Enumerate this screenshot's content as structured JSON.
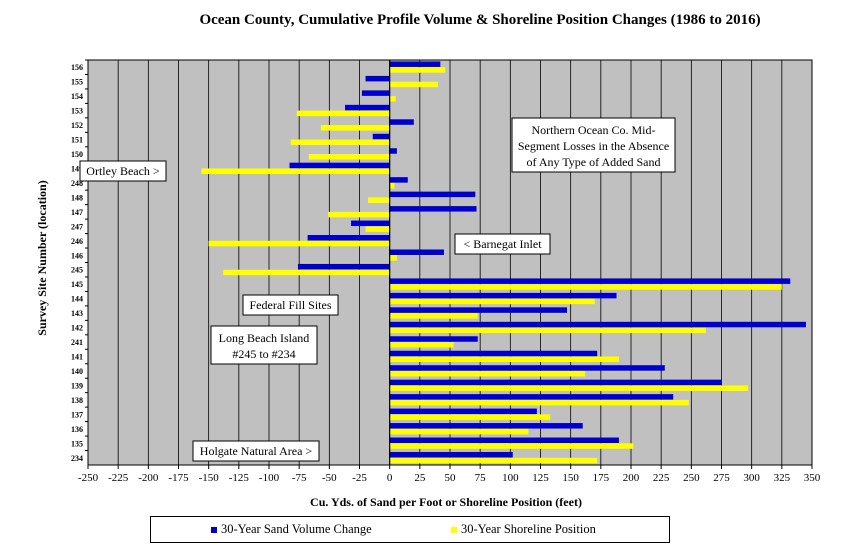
{
  "chart_data": {
    "type": "bar",
    "orientation": "horizontal",
    "title": "Ocean County, Cumulative Profile Volume & Shoreline Position Changes (1986 to 2016)",
    "xlabel": "Cu. Yds. of Sand per Foot or Shoreline Position (feet)",
    "ylabel": "Survey Site Number (location)",
    "xlim": [
      -250,
      350
    ],
    "xticks": [
      -250,
      -225,
      -200,
      -175,
      -150,
      -125,
      -100,
      -75,
      -50,
      -25,
      0,
      25,
      50,
      75,
      100,
      125,
      150,
      175,
      200,
      225,
      250,
      275,
      300,
      325,
      350
    ],
    "grid": "vertical",
    "legend_position": "bottom",
    "categories": [
      "156",
      "155",
      "154",
      "153",
      "152",
      "151",
      "150",
      "149",
      "248",
      "148",
      "147",
      "247",
      "246",
      "146",
      "245",
      "145",
      "144",
      "143",
      "142",
      "241",
      "141",
      "140",
      "139",
      "138",
      "137",
      "136",
      "135",
      "234"
    ],
    "series": [
      {
        "name": "30-Year Sand Volume Change",
        "color": "#0000cc",
        "values": [
          42,
          -20,
          -23,
          -37,
          20,
          -14,
          6,
          -83,
          15,
          71,
          72,
          -32,
          -68,
          45,
          -76,
          332,
          188,
          147,
          345,
          73,
          172,
          228,
          275,
          235,
          122,
          160,
          190,
          102
        ]
      },
      {
        "name": "30-Year Shoreline Position",
        "color": "#ffff00",
        "values": [
          46,
          40,
          5,
          -77,
          -57,
          -82,
          -67,
          -156,
          4,
          -18,
          -51,
          -20,
          -150,
          6,
          -138,
          325,
          170,
          73,
          262,
          53,
          190,
          162,
          297,
          248,
          133,
          115,
          202,
          172
        ]
      }
    ],
    "annotations": [
      {
        "id": "ortley",
        "text": [
          "Ortley Beach >"
        ]
      },
      {
        "id": "northern",
        "text": [
          "Northern Ocean Co. Mid-",
          "Segment Losses in the Absence",
          "of Any Type of Added Sand"
        ]
      },
      {
        "id": "barnegat",
        "text": [
          "< Barnegat Inlet"
        ]
      },
      {
        "id": "federal",
        "text": [
          "Federal Fill Sites"
        ]
      },
      {
        "id": "lbi",
        "text": [
          "Long Beach Island",
          "#245 to #234"
        ]
      },
      {
        "id": "holgate",
        "text": [
          "Holgate Natural Area >"
        ]
      }
    ]
  }
}
